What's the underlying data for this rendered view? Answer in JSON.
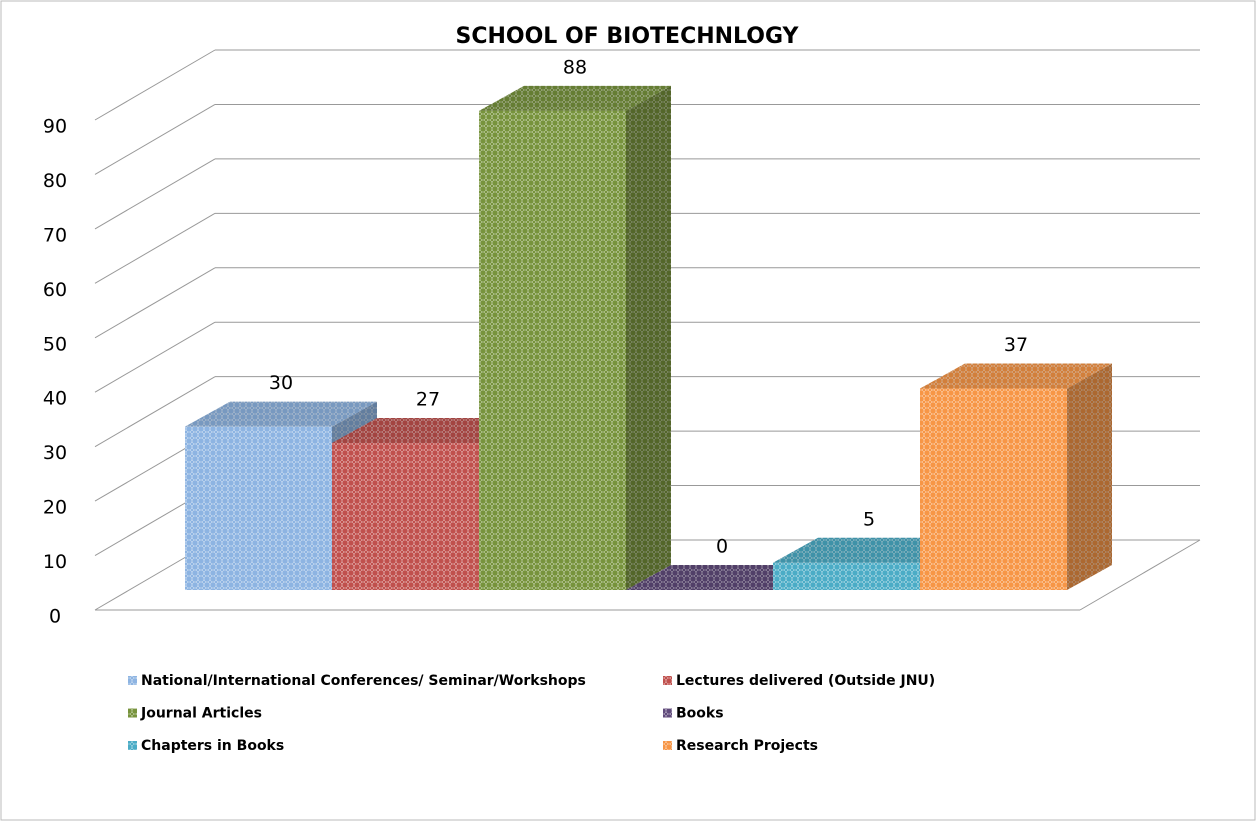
{
  "chart_data": {
    "type": "bar3d",
    "title": "SCHOOL OF BIOTECHNLOGY",
    "ylim": [
      0,
      90
    ],
    "yticks": [
      0,
      10,
      20,
      30,
      40,
      50,
      60,
      70,
      80,
      90
    ],
    "grid": true,
    "series": [
      {
        "name": "National/International Conferences/ Seminar/Workshops",
        "color": "#8db4e2",
        "values": [
          30
        ]
      },
      {
        "name": "Lectures delivered (Outside JNU)",
        "color": "#c0504d",
        "values": [
          27
        ]
      },
      {
        "name": "Journal Articles",
        "color": "#77933c",
        "values": [
          88
        ]
      },
      {
        "name": "Books",
        "color": "#604a7b",
        "values": [
          0
        ]
      },
      {
        "name": "Chapters in Books",
        "color": "#4bacc6",
        "values": [
          5
        ]
      },
      {
        "name": "Research Projects",
        "color": "#f79646",
        "values": [
          37
        ]
      }
    ]
  }
}
